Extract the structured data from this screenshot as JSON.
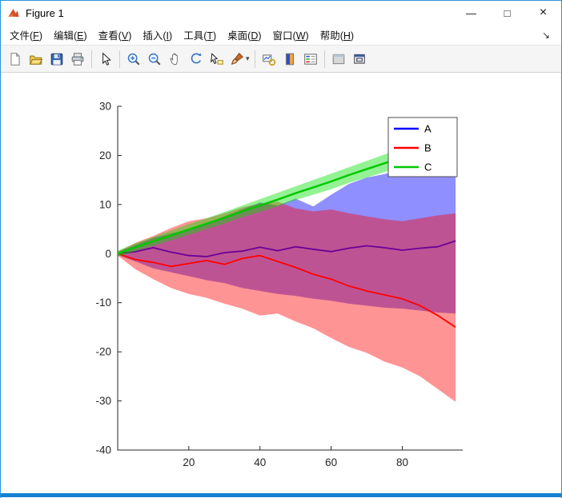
{
  "window": {
    "title": "Figure 1",
    "border_color": "#2596d9",
    "controls": [
      {
        "name": "minimize",
        "glyph": "—"
      },
      {
        "name": "maximize",
        "glyph": "□"
      },
      {
        "name": "close",
        "glyph": "×"
      }
    ]
  },
  "menu_bar": {
    "items": [
      "文件(F)",
      "编辑(E)",
      "查看(V)",
      "插入(I)",
      "工具(T)",
      "桌面(D)",
      "窗口(W)",
      "帮助(H)"
    ],
    "dock_arrow_glyph": "↘"
  },
  "toolbar": {
    "groups": [
      [
        "new-figure",
        "open-file",
        "save-figure",
        "print-figure"
      ],
      [
        "edit-plot"
      ],
      [
        "zoom-in",
        "zoom-out",
        "pan",
        "rotate-3d",
        "data-cursor",
        "brush"
      ],
      [
        "link-plot",
        "insert-colorbar",
        "insert-legend"
      ],
      [
        "hide-plot-tools",
        "dock-figure"
      ]
    ],
    "brush_dropdown_glyph": "▾"
  },
  "chart_data": {
    "type": "line",
    "title": "",
    "xlabel": "",
    "ylabel": "",
    "xlim": [
      0,
      97
    ],
    "ylim": [
      -40,
      30
    ],
    "xticks": [
      20,
      40,
      60,
      80
    ],
    "yticks": [
      -40,
      -30,
      -20,
      -10,
      0,
      10,
      20,
      30
    ],
    "grid": false,
    "axis_color": "#262626",
    "background": "#ffffff",
    "x": [
      0,
      5,
      10,
      15,
      20,
      25,
      30,
      35,
      40,
      45,
      50,
      55,
      60,
      65,
      70,
      75,
      80,
      85,
      90,
      95
    ],
    "series": [
      {
        "name": "A",
        "line_color": "#0000ff",
        "line_width": 1.8,
        "band_color": "rgba(0,0,255,0.44)",
        "values": [
          0,
          0.4,
          1.2,
          0.3,
          -0.4,
          -0.6,
          0.2,
          0.5,
          1.3,
          0.6,
          1.4,
          0.9,
          0.4,
          1.1,
          1.6,
          1.2,
          0.7,
          1.1,
          1.4,
          2.6
        ],
        "band_upper": [
          0.3,
          1.8,
          3.2,
          4.1,
          5.0,
          6.2,
          7.6,
          9.0,
          10.4,
          9.8,
          11.2,
          9.6,
          12.0,
          14.2,
          15.5,
          16.2,
          17.3,
          16.6,
          17.0,
          17.2
        ],
        "band_lower": [
          -0.3,
          -1.6,
          -3.0,
          -3.8,
          -4.6,
          -5.4,
          -6.0,
          -7.0,
          -7.6,
          -8.2,
          -8.6,
          -9.2,
          -9.6,
          -10.2,
          -10.6,
          -11.0,
          -11.2,
          -11.6,
          -12.0,
          -12.2
        ]
      },
      {
        "name": "B",
        "line_color": "#ff0000",
        "line_width": 1.8,
        "band_color": "rgba(255,0,0,0.42)",
        "values": [
          0,
          -1.2,
          -1.8,
          -2.6,
          -2.0,
          -1.4,
          -2.2,
          -1.0,
          -0.4,
          -1.6,
          -2.8,
          -4.2,
          -5.2,
          -6.6,
          -7.6,
          -8.4,
          -9.2,
          -10.6,
          -12.6,
          -15.0
        ],
        "band_upper": [
          0.4,
          2.2,
          3.6,
          5.2,
          6.6,
          7.2,
          8.2,
          9.4,
          10.2,
          10.6,
          9.2,
          8.6,
          9.0,
          8.2,
          7.6,
          7.0,
          6.6,
          7.2,
          7.8,
          8.2
        ],
        "band_lower": [
          -0.4,
          -3.2,
          -5.2,
          -7.0,
          -8.2,
          -9.0,
          -10.2,
          -11.2,
          -12.6,
          -12.2,
          -13.8,
          -15.2,
          -17.2,
          -19.0,
          -20.2,
          -22.0,
          -23.2,
          -25.0,
          -27.6,
          -30.2
        ]
      },
      {
        "name": "C",
        "line_color": "#00c800",
        "line_width": 2.5,
        "band_color": "rgba(0,225,0,0.42)",
        "values": [
          0,
          1.3,
          2.5,
          3.7,
          4.9,
          6.1,
          7.3,
          8.6,
          9.8,
          11.0,
          12.3,
          13.5,
          14.7,
          16.0,
          17.2,
          18.4,
          19.6,
          20.9,
          22.1,
          23.6
        ],
        "band_upper": [
          0.6,
          2.1,
          3.4,
          4.7,
          6.0,
          7.2,
          8.5,
          9.8,
          11.1,
          12.4,
          13.7,
          15.0,
          16.3,
          17.6,
          18.9,
          20.2,
          21.5,
          22.8,
          24.1,
          25.6
        ],
        "band_lower": [
          -0.6,
          0.5,
          1.6,
          2.7,
          3.8,
          5.0,
          6.1,
          7.4,
          8.5,
          9.6,
          10.9,
          12.0,
          13.1,
          14.4,
          15.5,
          16.6,
          17.7,
          19.0,
          20.1,
          21.6
        ]
      }
    ],
    "legend": {
      "entries": [
        "A",
        "B",
        "C"
      ],
      "position": "top-right",
      "border_color": "#4d4d4d",
      "background": "#ffffff"
    }
  }
}
